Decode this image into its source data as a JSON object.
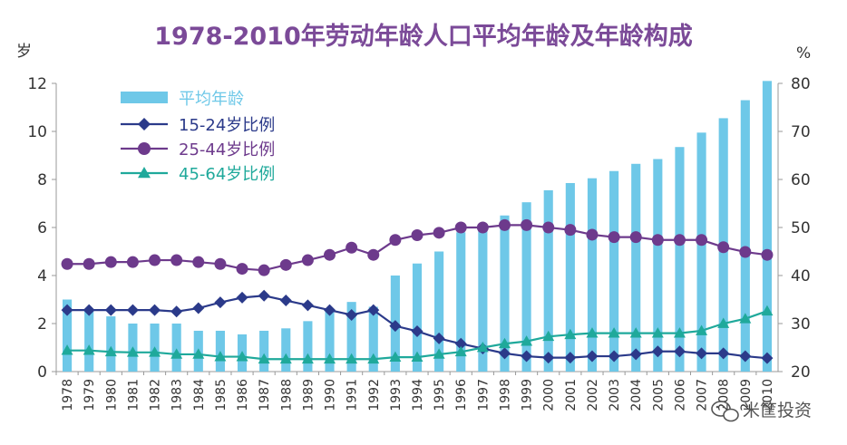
{
  "chart_data": {
    "type": "bar+line",
    "title": "1978-2010年劳动年龄人口平均年龄及年龄构成",
    "left_axis_unit": "岁",
    "right_axis_unit": "%",
    "left_ylim": [
      0,
      12
    ],
    "left_ticks": [
      "0",
      "2",
      "4",
      "6",
      "8",
      "10",
      "12"
    ],
    "right_ylim": [
      20,
      80
    ],
    "right_ticks": [
      "20",
      "30",
      "40",
      "50",
      "60",
      "70",
      "80"
    ],
    "categories": [
      "1978",
      "1979",
      "1980",
      "1981",
      "1982",
      "1983",
      "1984",
      "1985",
      "1986",
      "1987",
      "1988",
      "1989",
      "1990",
      "1991",
      "1992",
      "1993",
      "1994",
      "1995",
      "1996",
      "1997",
      "1998",
      "1999",
      "2000",
      "2001",
      "2002",
      "2003",
      "2004",
      "2005",
      "2006",
      "2007",
      "2008",
      "2009",
      "2010"
    ],
    "bar_series": {
      "name": "平均年龄",
      "axis": "left",
      "color": "#6ec8e8",
      "values": [
        3.0,
        2.6,
        2.3,
        2.0,
        2.0,
        2.0,
        1.7,
        1.7,
        1.55,
        1.7,
        1.8,
        2.1,
        2.6,
        2.9,
        2.7,
        4.0,
        4.5,
        5.0,
        5.8,
        6.1,
        6.5,
        7.05,
        7.55,
        7.85,
        8.05,
        8.35,
        8.65,
        8.85,
        9.35,
        9.95,
        10.55,
        11.3,
        12.1
      ]
    },
    "line_series": [
      {
        "name": "15-24岁比例",
        "axis": "right",
        "color": "#2b3a8a",
        "marker": "diamond",
        "values": [
          32.8,
          32.8,
          32.8,
          32.8,
          32.8,
          32.5,
          33.2,
          34.4,
          35.4,
          35.8,
          34.8,
          33.8,
          32.8,
          31.8,
          32.8,
          29.5,
          28.4,
          26.9,
          25.8,
          24.8,
          23.8,
          23.2,
          22.9,
          22.9,
          23.2,
          23.2,
          23.6,
          24.2,
          24.2,
          23.8,
          23.8,
          23.2,
          22.8
        ]
      },
      {
        "name": "25-44岁比例",
        "axis": "right",
        "color": "#6d3a8c",
        "marker": "circle",
        "values": [
          42.4,
          42.4,
          42.8,
          42.8,
          43.2,
          43.2,
          42.8,
          42.4,
          41.4,
          41.1,
          42.2,
          43.2,
          44.3,
          45.8,
          44.3,
          47.4,
          48.4,
          48.9,
          50.0,
          50.0,
          50.5,
          50.5,
          50.0,
          49.5,
          48.5,
          48.0,
          48.0,
          47.4,
          47.4,
          47.4,
          45.9,
          44.9,
          44.3
        ]
      },
      {
        "name": "45-64岁比例",
        "axis": "right",
        "color": "#1fa99b",
        "marker": "triangle",
        "values": [
          24.4,
          24.4,
          24.1,
          24.0,
          24.0,
          23.6,
          23.6,
          23.1,
          23.1,
          22.6,
          22.6,
          22.6,
          22.6,
          22.6,
          22.6,
          23.0,
          23.0,
          23.6,
          24.1,
          25.0,
          25.8,
          26.3,
          27.3,
          27.7,
          28.0,
          28.0,
          28.0,
          28.0,
          28.0,
          28.5,
          30.0,
          31.0,
          32.6
        ]
      }
    ],
    "legend_position": "top-left",
    "watermark": "米筐投资"
  }
}
